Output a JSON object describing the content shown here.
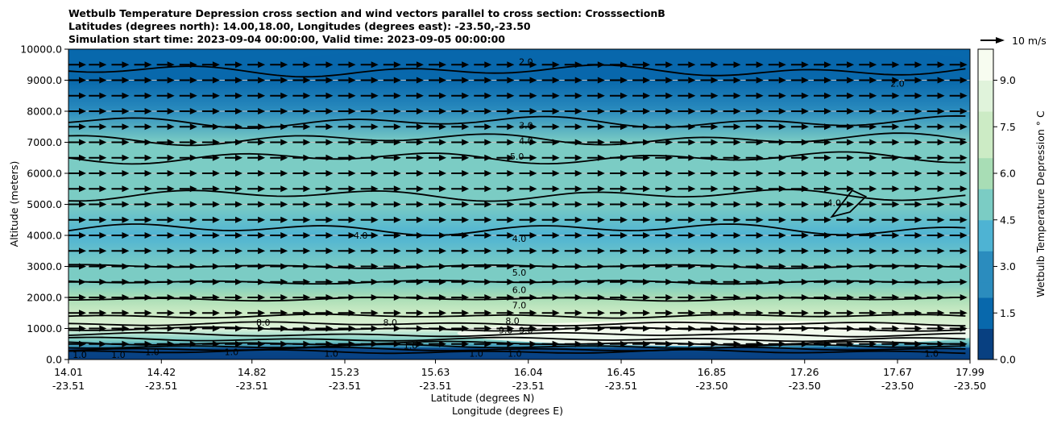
{
  "chart_data": {
    "type": "heatmap",
    "title_lines": [
      "Wetbulb Temperature Depression cross section and wind vectors parallel to cross section: CrosssectionB",
      "Latitudes (degrees north): 14.00,18.00, Longitudes (degrees east): -23.50,-23.50",
      "Simulation start time: 2023-09-04 00:00:00, Valid time: 2023-09-05 00:00:00"
    ],
    "xlabel_lines": [
      "Latitude (degrees N)",
      "Longitude (degrees E)"
    ],
    "ylabel": "Altitude (meters)",
    "ylim": [
      0,
      10000
    ],
    "y_ticks": [
      "0.0",
      "1000.0",
      "2000.0",
      "3000.0",
      "4000.0",
      "5000.0",
      "6000.0",
      "7000.0",
      "8000.0",
      "9000.0",
      "10000.0"
    ],
    "x_ticks": [
      {
        "lat": "14.01",
        "lon": "-23.51"
      },
      {
        "lat": "14.42",
        "lon": "-23.51"
      },
      {
        "lat": "14.82",
        "lon": "-23.51"
      },
      {
        "lat": "15.23",
        "lon": "-23.51"
      },
      {
        "lat": "15.63",
        "lon": "-23.51"
      },
      {
        "lat": "16.04",
        "lon": "-23.51"
      },
      {
        "lat": "16.45",
        "lon": "-23.51"
      },
      {
        "lat": "16.85",
        "lon": "-23.50"
      },
      {
        "lat": "17.26",
        "lon": "-23.50"
      },
      {
        "lat": "17.67",
        "lon": "-23.50"
      },
      {
        "lat": "17.99",
        "lon": "-23.50"
      }
    ],
    "colorbar": {
      "label": "Wetbulb Temperature Depression ° C",
      "ticks": [
        "0.0",
        "1.5",
        "3.0",
        "4.5",
        "6.0",
        "7.5",
        "9.0"
      ],
      "range": [
        0,
        10
      ],
      "colors": [
        "#084081",
        "#0868ac",
        "#2b8cbe",
        "#4eb3d3",
        "#7bccc4",
        "#a8ddb5",
        "#ccebc5",
        "#e0f3db",
        "#f7fcf0"
      ]
    },
    "quiver_key": {
      "label": "10 m/s"
    },
    "grid": true,
    "background_profile": [
      {
        "altitude": 0,
        "value": 0.8
      },
      {
        "altitude": 300,
        "value": 1.2
      },
      {
        "altitude": 600,
        "value": 4.5
      },
      {
        "altitude": 1000,
        "value": 8.0
      },
      {
        "altitude": 1500,
        "value": 7.5
      },
      {
        "altitude": 2000,
        "value": 6.5
      },
      {
        "altitude": 2500,
        "value": 5.5
      },
      {
        "altitude": 3000,
        "value": 4.8
      },
      {
        "altitude": 4000,
        "value": 4.0
      },
      {
        "altitude": 5000,
        "value": 5.2
      },
      {
        "altitude": 6000,
        "value": 5.5
      },
      {
        "altitude": 7000,
        "value": 4.5
      },
      {
        "altitude": 8000,
        "value": 3.0
      },
      {
        "altitude": 9000,
        "value": 2.2
      },
      {
        "altitude": 10000,
        "value": 1.8
      }
    ],
    "contour_labels": [
      {
        "text": "2.0",
        "lat": 16.03,
        "altitude": 9600
      },
      {
        "text": "2.0",
        "lat": 17.67,
        "altitude": 8900
      },
      {
        "text": "3.0",
        "lat": 16.03,
        "altitude": 7550
      },
      {
        "text": "4.0",
        "lat": 16.03,
        "altitude": 7050
      },
      {
        "text": "5.0",
        "lat": 15.99,
        "altitude": 6550
      },
      {
        "text": "4.0",
        "lat": 17.39,
        "altitude": 5050
      },
      {
        "text": "4.0",
        "lat": 15.3,
        "altitude": 4000
      },
      {
        "text": "4.0",
        "lat": 16.0,
        "altitude": 3900
      },
      {
        "text": "5.0",
        "lat": 16.0,
        "altitude": 2800
      },
      {
        "text": "6.0",
        "lat": 16.0,
        "altitude": 2250
      },
      {
        "text": "7.0",
        "lat": 16.0,
        "altitude": 1750
      },
      {
        "text": "8.0",
        "lat": 15.97,
        "altitude": 1250
      },
      {
        "text": "8.0",
        "lat": 14.87,
        "altitude": 1200
      },
      {
        "text": "8.0",
        "lat": 15.43,
        "altitude": 1200
      },
      {
        "text": "9.0",
        "lat": 15.94,
        "altitude": 950
      },
      {
        "text": "9.0",
        "lat": 16.03,
        "altitude": 950
      },
      {
        "text": "1.0",
        "lat": 14.06,
        "altitude": 150
      },
      {
        "text": "1.0",
        "lat": 14.23,
        "altitude": 150
      },
      {
        "text": "1.0",
        "lat": 14.38,
        "altitude": 250
      },
      {
        "text": "1.0",
        "lat": 14.73,
        "altitude": 250
      },
      {
        "text": "1.0",
        "lat": 15.17,
        "altitude": 200
      },
      {
        "text": "1.0",
        "lat": 15.52,
        "altitude": 450
      },
      {
        "text": "1.0",
        "lat": 15.81,
        "altitude": 200
      },
      {
        "text": "1.0",
        "lat": 15.98,
        "altitude": 200
      },
      {
        "text": "1.0",
        "lat": 17.82,
        "altitude": 200
      }
    ],
    "wind": {
      "direction": "parallel, toward increasing latitude",
      "levels": [
        500,
        1000,
        1500,
        2000,
        2500,
        3000,
        3500,
        4000,
        4500,
        5000,
        5500,
        6000,
        6500,
        7000,
        7500,
        8000,
        8500,
        9000,
        9500
      ],
      "lats": [
        14.01,
        14.1,
        14.2,
        14.3,
        14.4,
        14.5,
        14.6,
        14.7,
        14.8,
        14.9,
        15.0,
        15.1,
        15.2,
        15.3,
        15.4,
        15.5,
        15.6,
        15.7,
        15.8,
        15.9,
        16.0,
        16.1,
        16.2,
        16.3,
        16.4,
        16.5,
        16.6,
        16.7,
        16.8,
        16.9,
        17.0,
        17.1,
        17.2,
        17.3,
        17.4,
        17.5,
        17.6,
        17.7,
        17.8,
        17.9,
        17.99
      ]
    }
  }
}
